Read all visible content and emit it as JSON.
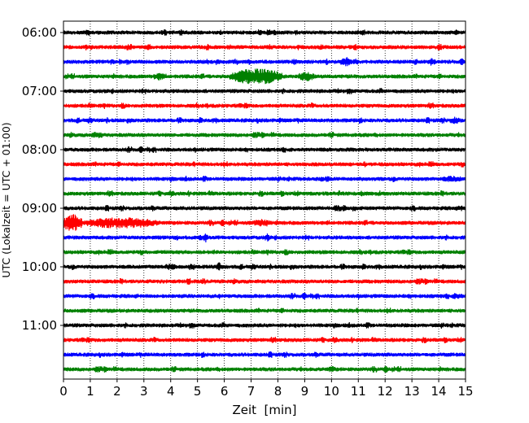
{
  "chart_data": {
    "type": "line",
    "xlabel": "Zeit  [min]",
    "ylabel": "UTC (Lokalzeit = UTC + 01:00)",
    "xlim": [
      0,
      15
    ],
    "x_ticks": [
      0,
      1,
      2,
      3,
      4,
      5,
      6,
      7,
      8,
      9,
      10,
      11,
      12,
      13,
      14,
      15
    ],
    "grid": "vertical dotted",
    "y_tick_labels": [
      "06:00",
      "07:00",
      "08:00",
      "09:00",
      "10:00",
      "11:00"
    ],
    "trace_start_times": [
      "06:00",
      "06:15",
      "06:30",
      "06:45",
      "07:00",
      "07:15",
      "07:30",
      "07:45",
      "08:00",
      "08:15",
      "08:30",
      "08:45",
      "09:00",
      "09:15",
      "09:30",
      "09:45",
      "10:00",
      "10:15",
      "10:30",
      "10:45",
      "11:00",
      "11:15",
      "11:30",
      "11:45"
    ],
    "trace_colors": [
      "#000000",
      "#ff0000",
      "#0000ff",
      "#008000"
    ],
    "events": [
      {
        "trace": 3,
        "x_min": 6.2,
        "x_max": 8.2,
        "amplitude": 10,
        "note": "large green burst"
      },
      {
        "trace": 3,
        "x_min": 8.7,
        "x_max": 9.4,
        "amplitude": 6
      },
      {
        "trace": 3,
        "x_min": 3.3,
        "x_max": 3.9,
        "amplitude": 5
      },
      {
        "trace": 2,
        "x_min": 10.3,
        "x_max": 10.8,
        "amplitude": 6
      },
      {
        "trace": 2,
        "x_min": 13.6,
        "x_max": 13.9,
        "amplitude": 5
      },
      {
        "trace": 13,
        "x_min": 0.0,
        "x_max": 0.7,
        "amplitude": 12,
        "note": "large red burst"
      },
      {
        "trace": 13,
        "x_min": 0.7,
        "x_max": 3.6,
        "amplitude": 7
      },
      {
        "trace": 13,
        "x_min": 7.0,
        "x_max": 7.8,
        "amplitude": 5
      },
      {
        "trace": 14,
        "x_min": 5.2,
        "x_max": 5.4,
        "amplitude": 7
      },
      {
        "trace": 14,
        "x_min": 7.5,
        "x_max": 7.7,
        "amplitude": 5
      },
      {
        "trace": 16,
        "x_min": 5.7,
        "x_max": 5.9,
        "amplitude": 6
      },
      {
        "trace": 16,
        "x_min": 3.7,
        "x_max": 4.3,
        "amplitude": 4
      },
      {
        "trace": 6,
        "x_min": 14.4,
        "x_max": 14.8,
        "amplitude": 5
      },
      {
        "trace": 7,
        "x_min": 0.9,
        "x_max": 1.6,
        "amplitude": 4
      },
      {
        "trace": 10,
        "x_min": 14.0,
        "x_max": 15.0,
        "amplitude": 4
      },
      {
        "trace": 12,
        "x_min": 14.5,
        "x_max": 15.0,
        "amplitude": 4
      },
      {
        "trace": 18,
        "x_min": 14.4,
        "x_max": 15.0,
        "amplitude": 4
      },
      {
        "trace": 23,
        "x_min": 9.8,
        "x_max": 10.2,
        "amplitude": 4
      }
    ],
    "noise_amplitude": 2.5
  }
}
